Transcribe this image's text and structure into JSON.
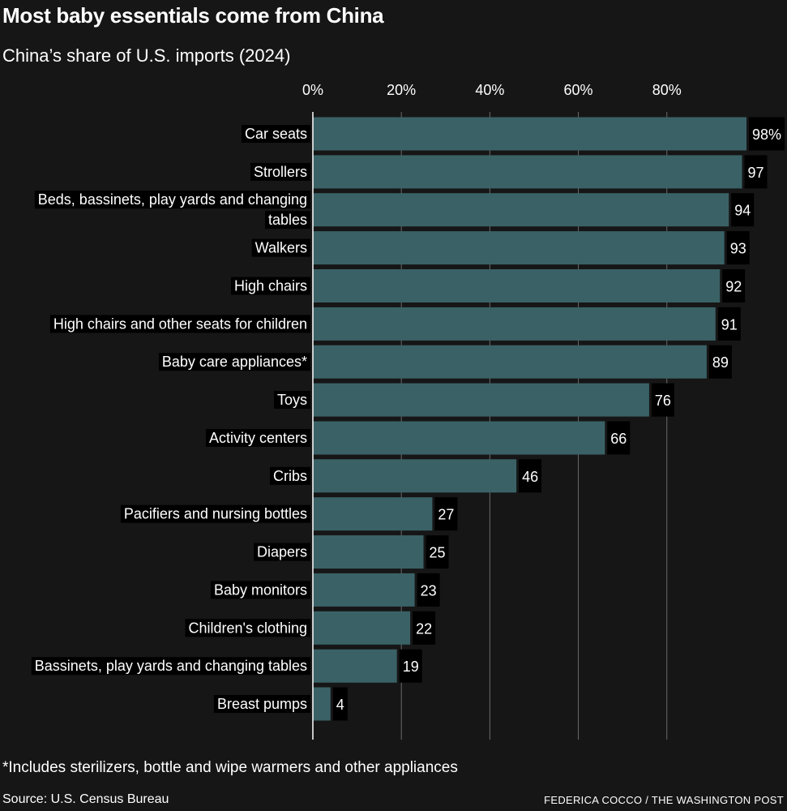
{
  "title": "Most baby essentials come from China",
  "subtitle": "China’s share of U.S. imports (2024)",
  "footnote": "*Includes sterilizers, bottle and wipe warmers and other appliances",
  "source": "Source: U.S. Census Bureau",
  "credit": "FEDERICA COCCO / THE WASHINGTON POST",
  "colors": {
    "background": "#161616",
    "bar": "#3a6266",
    "gridline": "#6b6b6b",
    "text": "#ffffff",
    "label_box": "#000000"
  },
  "chart_data": {
    "type": "bar",
    "orientation": "horizontal",
    "categories": [
      [
        "Car seats"
      ],
      [
        "Strollers"
      ],
      [
        "Beds, bassinets, play yards and changing",
        "tables"
      ],
      [
        "Walkers"
      ],
      [
        "High chairs"
      ],
      [
        "High chairs and other seats for children"
      ],
      [
        "Baby care appliances*"
      ],
      [
        "Toys"
      ],
      [
        "Activity centers"
      ],
      [
        "Cribs"
      ],
      [
        "Pacifiers and nursing bottles"
      ],
      [
        "Diapers"
      ],
      [
        "Baby monitors"
      ],
      [
        "Children's clothing"
      ],
      [
        "Bassinets, play yards and changing tables"
      ],
      [
        "Breast pumps"
      ]
    ],
    "values": [
      98,
      97,
      94,
      93,
      92,
      91,
      89,
      76,
      66,
      46,
      27,
      25,
      23,
      22,
      19,
      4
    ],
    "value_labels": [
      "98%",
      "97",
      "94",
      "93",
      "92",
      "91",
      "89",
      "76",
      "66",
      "46",
      "27",
      "25",
      "23",
      "22",
      "19",
      "4"
    ],
    "xlim": [
      0,
      100
    ],
    "ticks": [
      0,
      20,
      40,
      60,
      80
    ],
    "tick_labels": [
      "0%",
      "20%",
      "40%",
      "60%",
      "80%"
    ],
    "grid": true,
    "legend": "none"
  }
}
